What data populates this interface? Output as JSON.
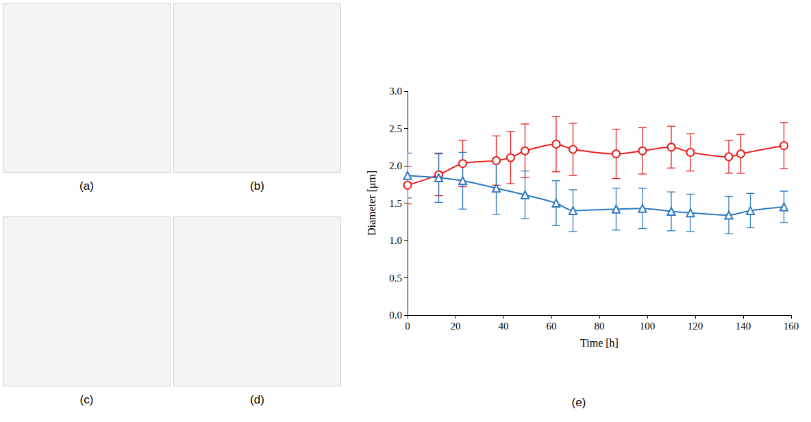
{
  "image_panels": [
    "(a)",
    "(b)",
    "(c)",
    "(d)"
  ],
  "chart_caption": "(e)",
  "chart_data": {
    "type": "line",
    "x_label": "Time [h]",
    "y_label": "Diameter [μm]",
    "xlim": [
      0,
      160
    ],
    "xticks": [
      0,
      20,
      40,
      60,
      80,
      100,
      120,
      140,
      160
    ],
    "ylim": [
      0,
      3
    ],
    "yticks": [
      {
        "value": 0,
        "label": "0.0"
      },
      0.5,
      {
        "value": 1,
        "label": "1.0"
      },
      1.5,
      {
        "value": 2,
        "label": "2.0"
      },
      2.5,
      {
        "value": 3,
        "label": "3.0"
      }
    ],
    "grid": false,
    "series": [
      {
        "color": "#e8201c",
        "marker": "circle",
        "line_style": "solid",
        "x": [
          0,
          13,
          23,
          37,
          43,
          49,
          62,
          69,
          87,
          98,
          110,
          118,
          134,
          139,
          157
        ],
        "values": [
          1.74,
          1.88,
          2.03,
          2.07,
          2.11,
          2.2,
          2.29,
          2.22,
          2.16,
          2.2,
          2.25,
          2.18,
          2.12,
          2.16,
          2.27
        ],
        "errors": [
          0.25,
          0.28,
          0.31,
          0.33,
          0.35,
          0.36,
          0.37,
          0.35,
          0.33,
          0.31,
          0.28,
          0.25,
          0.22,
          0.26,
          0.31
        ]
      },
      {
        "color": "#2a78c2",
        "marker": "triangle",
        "line_style": "solid",
        "x": [
          0,
          13,
          23,
          37,
          49,
          62,
          69,
          87,
          98,
          110,
          118,
          134,
          143,
          157
        ],
        "values": [
          1.87,
          1.84,
          1.8,
          1.7,
          1.61,
          1.5,
          1.4,
          1.42,
          1.43,
          1.39,
          1.37,
          1.34,
          1.4,
          1.45
        ],
        "errors": [
          0.3,
          0.33,
          0.38,
          0.35,
          0.32,
          0.3,
          0.28,
          0.28,
          0.27,
          0.26,
          0.25,
          0.25,
          0.23,
          0.21
        ]
      }
    ]
  }
}
